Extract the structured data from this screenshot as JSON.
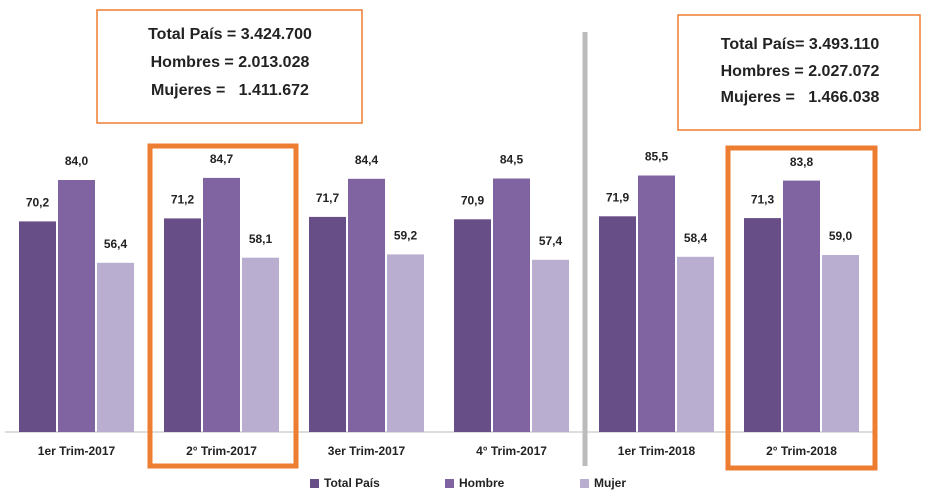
{
  "chart_data": {
    "type": "bar",
    "categories": [
      "1er Trim-2017",
      "2° Trim-2017",
      "3er Trim-2017",
      "4° Trim-2017",
      "1er Trim-2018",
      "2° Trim-2018"
    ],
    "series": [
      {
        "name": "Total País",
        "color": "#684e86",
        "values": [
          70.2,
          71.2,
          71.7,
          70.9,
          71.9,
          71.3
        ],
        "value_labels": [
          "70,2",
          "71,2",
          "71,7",
          "70,9",
          "71,9",
          "71,3"
        ]
      },
      {
        "name": "Hombre",
        "color": "#8064a2",
        "values": [
          84.0,
          84.7,
          84.4,
          84.5,
          85.5,
          83.8
        ],
        "value_labels": [
          "84,0",
          "84,7",
          "84,4",
          "84,5",
          "85,5",
          "83,8"
        ]
      },
      {
        "name": "Mujer",
        "color": "#b9aecf",
        "values": [
          56.4,
          58.1,
          59.2,
          57.4,
          58.4,
          59.0
        ],
        "value_labels": [
          "56,4",
          "58,1",
          "59,2",
          "57,4",
          "58,4",
          "59,0"
        ]
      }
    ],
    "annotations": [
      [
        "Total País = 3.424.700",
        "Hombres = 2.013.028",
        "Mujeres =   1.411.672"
      ],
      [
        "Total País= 3.493.110",
        "Hombres = 2.027.072",
        "Mujeres =   1.466.038"
      ]
    ]
  }
}
